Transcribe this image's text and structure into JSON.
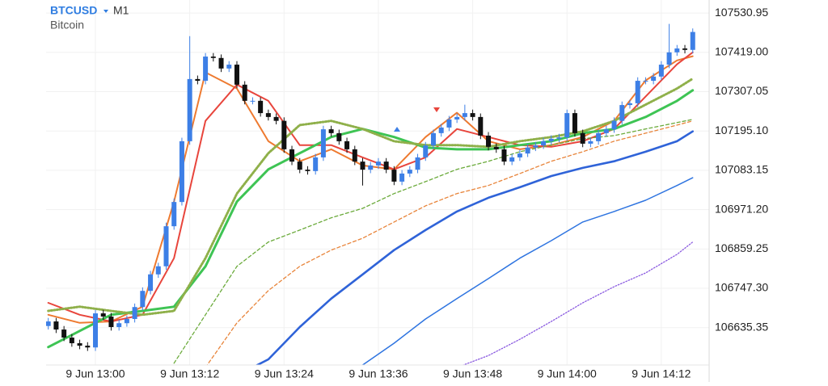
{
  "header": {
    "symbol": "BTCUSD",
    "timeframe": "M1",
    "description": "Bitcoin"
  },
  "chart_data": {
    "type": "candlestick",
    "categories": [
      null,
      null,
      null,
      null,
      null,
      null,
      "9 Jun 13:00",
      null,
      null,
      null,
      null,
      null,
      null,
      null,
      null,
      null,
      null,
      null,
      "9 Jun 13:12",
      null,
      null,
      null,
      null,
      null,
      null,
      null,
      null,
      null,
      null,
      null,
      "9 Jun 13:24",
      null,
      null,
      null,
      null,
      null,
      null,
      null,
      null,
      null,
      null,
      null,
      "9 Jun 13:36",
      null,
      null,
      null,
      null,
      null,
      null,
      null,
      null,
      null,
      null,
      null,
      "9 Jun 13:48",
      null,
      null,
      null,
      null,
      null,
      null,
      null,
      null,
      null,
      null,
      null,
      "9 Jun 14:00",
      null,
      null,
      null,
      null,
      null,
      null,
      null,
      null,
      null,
      null,
      null,
      "9 Jun 14:12",
      null,
      null,
      null,
      null
    ],
    "open": [
      106640,
      106653,
      106630,
      106607,
      106591,
      106584,
      106579,
      106676,
      106667,
      106637,
      106648,
      106660,
      106694,
      106740,
      106787,
      106810,
      106924,
      106993,
      107166,
      107343,
      107338,
      107407,
      107403,
      107373,
      107384,
      107327,
      107281,
      107281,
      107246,
      107235,
      107224,
      107143,
      107108,
      107085,
      107081,
      107120,
      107200,
      107189,
      107166,
      107143,
      107108,
      107085,
      107097,
      107108,
      107085,
      107051,
      107074,
      107085,
      107120,
      107154,
      107189,
      107205,
      107228,
      107235,
      107246,
      107235,
      107182,
      107150,
      107143,
      107108,
      107120,
      107131,
      107148,
      107154,
      107166,
      107173,
      107177,
      107246,
      107189,
      107159,
      107166,
      107189,
      107200,
      107224,
      107269,
      107274,
      107338,
      107338,
      107350,
      107384,
      107419,
      107430,
      107426
    ],
    "high": [
      106663,
      106663,
      106640,
      106617,
      106601,
      106594,
      106686,
      106686,
      106677,
      106658,
      106670,
      106704,
      106750,
      106797,
      106820,
      106934,
      107003,
      107176,
      107465,
      107353,
      107417,
      107417,
      107413,
      107394,
      107394,
      107337,
      107291,
      107291,
      107256,
      107245,
      107234,
      107153,
      107118,
      107095,
      107130,
      107210,
      107210,
      107199,
      107176,
      107153,
      107118,
      107107,
      107118,
      107118,
      107095,
      107084,
      107095,
      107130,
      107164,
      107199,
      107215,
      107238,
      107245,
      107270,
      107256,
      107245,
      107192,
      107160,
      107153,
      107130,
      107141,
      107158,
      107164,
      107176,
      107183,
      107187,
      107256,
      107256,
      107199,
      107176,
      107199,
      107210,
      107234,
      107279,
      107284,
      107348,
      107348,
      107360,
      107394,
      107500,
      107440,
      107440,
      107487
    ],
    "low": [
      106630,
      106620,
      106597,
      106581,
      106574,
      106569,
      106569,
      106657,
      106627,
      106627,
      106638,
      106650,
      106684,
      106730,
      106777,
      106800,
      106914,
      106983,
      107156,
      107328,
      107328,
      107393,
      107363,
      107363,
      107317,
      107271,
      107271,
      107236,
      107225,
      107214,
      107133,
      107098,
      107075,
      107071,
      107071,
      107110,
      107179,
      107156,
      107133,
      107098,
      107040,
      107075,
      107087,
      107075,
      107041,
      107041,
      107064,
      107075,
      107110,
      107144,
      107179,
      107195,
      107218,
      107225,
      107225,
      107172,
      107140,
      107133,
      107098,
      107098,
      107110,
      107121,
      107138,
      107144,
      107156,
      107163,
      107167,
      107179,
      107149,
      107149,
      107156,
      107179,
      107190,
      107214,
      107259,
      107264,
      107328,
      107328,
      107340,
      107374,
      107409,
      107416,
      107416
    ],
    "close": [
      106653,
      106630,
      106607,
      106591,
      106584,
      106579,
      106676,
      106667,
      106637,
      106648,
      106660,
      106694,
      106740,
      106787,
      106810,
      106924,
      106993,
      107166,
      107343,
      107338,
      107407,
      107403,
      107373,
      107384,
      107327,
      107281,
      107281,
      107246,
      107235,
      107224,
      107143,
      107108,
      107085,
      107081,
      107120,
      107200,
      107189,
      107166,
      107143,
      107108,
      107085,
      107097,
      107108,
      107085,
      107051,
      107074,
      107085,
      107120,
      107154,
      107189,
      107205,
      107228,
      107235,
      107246,
      107235,
      107182,
      107150,
      107143,
      107108,
      107120,
      107131,
      107148,
      107154,
      107166,
      107173,
      107177,
      107246,
      107189,
      107159,
      107166,
      107189,
      107200,
      107224,
      107269,
      107274,
      107338,
      107338,
      107350,
      107384,
      107419,
      107430,
      107426,
      107477
    ],
    "up_color": "#3d7fe6",
    "down_color": "#111111",
    "lines": [
      {
        "color": "#ee7a30",
        "style": "solid",
        "width": 2,
        "x": [
          0,
          4,
          8,
          12,
          16,
          20,
          24,
          28,
          32,
          36,
          40,
          44,
          48,
          52,
          56,
          60,
          64,
          68,
          72,
          76,
          80,
          82
        ],
        "values": [
          106672,
          106649,
          106653,
          106695,
          106994,
          107362,
          107316,
          107166,
          107109,
          107143,
          107097,
          107086,
          107178,
          107247,
          107166,
          107143,
          107155,
          107178,
          107224,
          107339,
          107396,
          107408
        ]
      },
      {
        "color": "#e8453c",
        "style": "solid",
        "width": 2,
        "x": [
          0,
          4,
          8,
          12,
          16,
          20,
          24,
          28,
          32,
          36,
          40,
          44,
          48,
          52,
          56,
          60,
          64,
          68,
          72,
          76,
          80,
          82
        ],
        "values": [
          106706,
          106672,
          106653,
          106672,
          106833,
          107224,
          107327,
          107281,
          107155,
          107155,
          107120,
          107086,
          107120,
          107201,
          107178,
          107155,
          107150,
          107166,
          107201,
          107293,
          107385,
          107419
        ]
      },
      {
        "color": "#3ec454",
        "style": "solid",
        "width": 3,
        "x": [
          0,
          4,
          8,
          12,
          16,
          20,
          24,
          28,
          32,
          36,
          40,
          44,
          48,
          52,
          56,
          60,
          64,
          68,
          72,
          76,
          80,
          82
        ],
        "values": [
          106580,
          106626,
          106672,
          106683,
          106695,
          106810,
          106994,
          107086,
          107132,
          107178,
          107201,
          107178,
          107148,
          107143,
          107143,
          107155,
          107166,
          107189,
          107201,
          107235,
          107281,
          107311
        ]
      },
      {
        "color": "#8fb04a",
        "style": "dot",
        "width": 3,
        "x": [
          0,
          4,
          8,
          12,
          16,
          20,
          24,
          28,
          32,
          36,
          40,
          44,
          48,
          52,
          56,
          60,
          64,
          68,
          72,
          76,
          80,
          82
        ],
        "values": [
          106683,
          106695,
          106683,
          106672,
          106683,
          106833,
          107017,
          107132,
          107212,
          107224,
          107201,
          107166,
          107155,
          107155,
          107150,
          107166,
          107178,
          107194,
          107224,
          107270,
          107316,
          107344
        ]
      },
      {
        "color": "#6aaa3a",
        "style": "dash",
        "width": 1.3,
        "x": [
          16,
          20,
          24,
          28,
          32,
          36,
          40,
          44,
          48,
          52,
          56,
          60,
          64,
          68,
          72,
          76,
          80,
          82
        ],
        "values": [
          106534,
          106672,
          106810,
          106879,
          106913,
          106948,
          106975,
          107017,
          107051,
          107086,
          107109,
          107136,
          107155,
          107173,
          107182,
          107201,
          107219,
          107228
        ]
      },
      {
        "color": "#e8843a",
        "style": "dash",
        "width": 1.3,
        "x": [
          20,
          24,
          28,
          32,
          36,
          40,
          44,
          48,
          52,
          56,
          60,
          64,
          68,
          72,
          76,
          80,
          82
        ],
        "values": [
          106522,
          106649,
          106741,
          106810,
          106856,
          106890,
          106936,
          106982,
          107017,
          107040,
          107074,
          107109,
          107136,
          107166,
          107189,
          107212,
          107224
        ]
      },
      {
        "color": "#2f63d8",
        "style": "solid",
        "width": 2.6,
        "x": [
          26,
          28,
          32,
          36,
          40,
          44,
          48,
          52,
          56,
          60,
          64,
          68,
          72,
          76,
          80,
          82
        ],
        "values": [
          106522,
          106545,
          106637,
          106718,
          106787,
          106856,
          106913,
          106966,
          107005,
          107035,
          107067,
          107090,
          107109,
          107136,
          107166,
          107194
        ]
      },
      {
        "color": "#2e74e0",
        "style": "solid",
        "width": 1.5,
        "x": [
          39,
          40,
          44,
          48,
          52,
          56,
          60,
          64,
          68,
          72,
          76,
          80,
          82
        ],
        "values": [
          106522,
          106529,
          106591,
          106660,
          106718,
          106775,
          106833,
          106883,
          106936,
          106966,
          106998,
          107040,
          107062
        ]
      },
      {
        "color": "#8a5ae0",
        "style": "dot",
        "width": 1.3,
        "x": [
          51,
          52,
          56,
          60,
          64,
          68,
          72,
          76,
          80,
          82
        ],
        "values": [
          106515,
          106522,
          106556,
          106602,
          106653,
          106706,
          106752,
          106791,
          106844,
          106879
        ]
      }
    ],
    "ylim": [
      106529,
      107568
    ],
    "yticks": [
      106635.35,
      {
        "value": 106747.3,
        "label": "106747.30"
      },
      106859.25,
      {
        "value": 106971.2,
        "label": "106971.20"
      },
      107083.15,
      {
        "value": 107195.1,
        "label": "107195.10"
      },
      107307.05,
      {
        "value": 107419,
        "label": "107419.00"
      },
      107530.95
    ],
    "grid": true
  }
}
